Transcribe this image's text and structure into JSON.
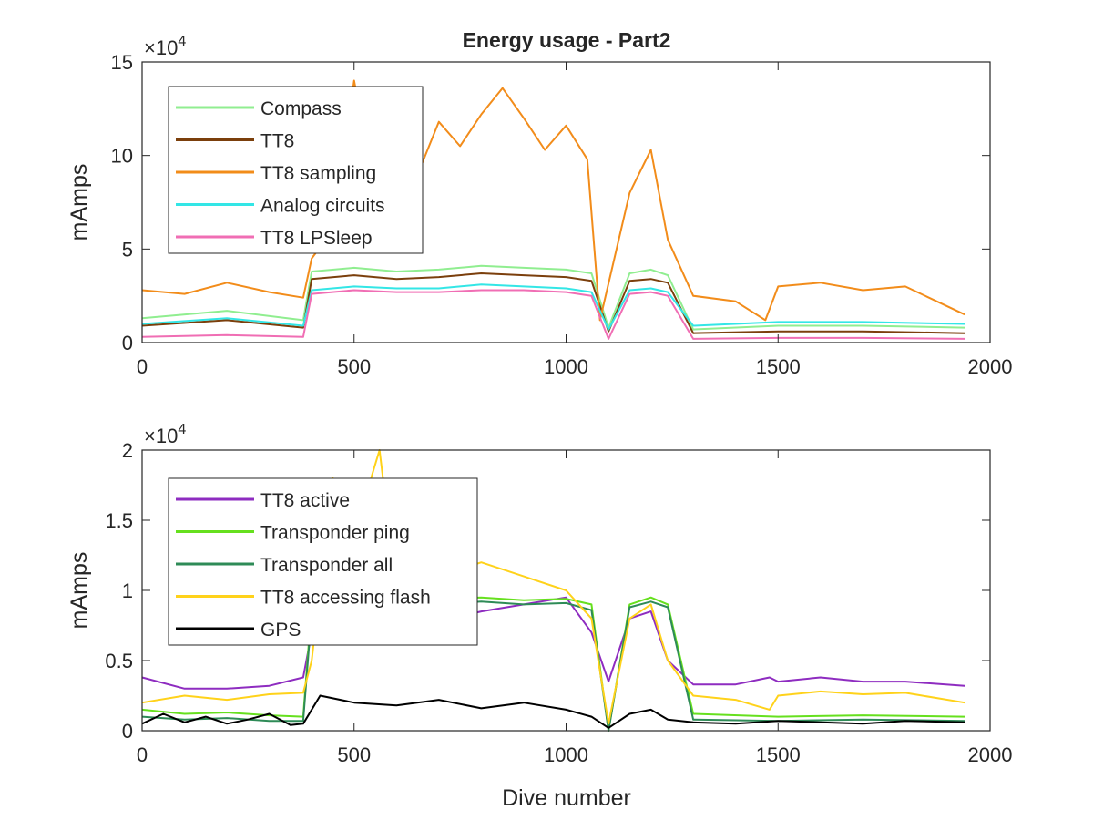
{
  "chart_data": [
    {
      "type": "line",
      "title": "Energy usage - Part2",
      "xlabel": "",
      "ylabel": "mAmps",
      "xlim": [
        0,
        2000
      ],
      "ylim": [
        0,
        150000
      ],
      "y_exponent_label": "×10",
      "y_exponent_power": "4",
      "xticks": [
        "0",
        "500",
        "1000",
        "1500",
        "2000"
      ],
      "yticks": [
        "0",
        "5",
        "10",
        "15"
      ],
      "ytick_values": [
        0,
        50000,
        100000,
        150000
      ],
      "legend_placement": "top-left",
      "grid": false,
      "series": [
        {
          "name": "Compass",
          "color": "#90ee90",
          "x": [
            0,
            200,
            380,
            400,
            500,
            600,
            700,
            800,
            900,
            1000,
            1060,
            1100,
            1150,
            1200,
            1240,
            1300,
            1500,
            1700,
            1940
          ],
          "y": [
            13000,
            17000,
            12000,
            38000,
            40000,
            38000,
            39000,
            41000,
            40000,
            39000,
            37000,
            8000,
            37000,
            39000,
            36000,
            7000,
            9000,
            9000,
            8000
          ]
        },
        {
          "name": "TT8",
          "color": "#7b3f0c",
          "x": [
            0,
            200,
            380,
            400,
            500,
            600,
            700,
            800,
            900,
            1000,
            1060,
            1100,
            1150,
            1200,
            1240,
            1300,
            1500,
            1700,
            1940
          ],
          "y": [
            9000,
            12000,
            8000,
            34000,
            36000,
            34000,
            35000,
            37000,
            36000,
            35000,
            33000,
            6000,
            33000,
            34000,
            32000,
            5000,
            6000,
            6000,
            5000
          ]
        },
        {
          "name": "TT8 sampling",
          "color": "#f28c1a",
          "x": [
            0,
            100,
            200,
            300,
            380,
            400,
            450,
            500,
            550,
            600,
            650,
            700,
            750,
            800,
            850,
            900,
            950,
            1000,
            1050,
            1080,
            1150,
            1200,
            1240,
            1300,
            1400,
            1470,
            1500,
            1600,
            1700,
            1800,
            1940
          ],
          "y": [
            28000,
            26000,
            32000,
            27000,
            24000,
            45000,
            60000,
            140000,
            80000,
            100000,
            90000,
            118000,
            105000,
            122000,
            136000,
            120000,
            103000,
            116000,
            98000,
            12000,
            80000,
            103000,
            55000,
            25000,
            22000,
            12000,
            30000,
            32000,
            28000,
            30000,
            15000
          ]
        },
        {
          "name": "Analog circuits",
          "color": "#33e6e6",
          "x": [
            0,
            200,
            380,
            400,
            500,
            600,
            700,
            800,
            900,
            1000,
            1060,
            1100,
            1150,
            1200,
            1240,
            1300,
            1500,
            1700,
            1940
          ],
          "y": [
            10000,
            13000,
            9000,
            28000,
            30000,
            29000,
            29000,
            31000,
            30000,
            29000,
            27000,
            7000,
            28000,
            29000,
            27000,
            9000,
            11000,
            11000,
            10000
          ]
        },
        {
          "name": "TT8 LPSleep",
          "color": "#f06eb4",
          "x": [
            0,
            200,
            380,
            400,
            500,
            600,
            700,
            800,
            900,
            1000,
            1060,
            1100,
            1150,
            1200,
            1240,
            1300,
            1500,
            1700,
            1940
          ],
          "y": [
            3000,
            4000,
            3000,
            26000,
            28000,
            27000,
            27000,
            28000,
            28000,
            27000,
            25000,
            2000,
            26000,
            27000,
            25000,
            2000,
            2500,
            2500,
            2000
          ]
        }
      ]
    },
    {
      "type": "line",
      "title": "",
      "xlabel": "Dive number",
      "ylabel": "mAmps",
      "xlim": [
        0,
        2000
      ],
      "ylim": [
        0,
        20000
      ],
      "y_exponent_label": "×10",
      "y_exponent_power": "4",
      "xticks": [
        "0",
        "500",
        "1000",
        "1500",
        "2000"
      ],
      "yticks": [
        "0",
        "0.5",
        "1",
        "1.5",
        "2"
      ],
      "ytick_values": [
        0,
        5000,
        10000,
        15000,
        20000
      ],
      "legend_placement": "top-left",
      "grid": false,
      "series": [
        {
          "name": "TT8 active",
          "color": "#8e2cc0",
          "x": [
            0,
            100,
            200,
            300,
            380,
            400,
            500,
            600,
            700,
            800,
            900,
            1000,
            1060,
            1100,
            1150,
            1200,
            1240,
            1300,
            1400,
            1480,
            1500,
            1600,
            1700,
            1800,
            1940
          ],
          "y": [
            3800,
            3000,
            3000,
            3200,
            3800,
            7000,
            8000,
            7500,
            7800,
            8500,
            9000,
            9500,
            7000,
            3500,
            8000,
            8500,
            5000,
            3300,
            3300,
            3800,
            3500,
            3800,
            3500,
            3500,
            3200
          ]
        },
        {
          "name": "Transponder ping",
          "color": "#66e01e",
          "x": [
            0,
            100,
            200,
            300,
            380,
            400,
            500,
            600,
            700,
            800,
            900,
            1000,
            1060,
            1100,
            1150,
            1200,
            1240,
            1300,
            1500,
            1700,
            1940
          ],
          "y": [
            1500,
            1200,
            1300,
            1100,
            1000,
            9000,
            9500,
            9200,
            9400,
            9500,
            9300,
            9400,
            9000,
            0,
            9000,
            9500,
            9000,
            1200,
            1000,
            1100,
            1000
          ]
        },
        {
          "name": "Transponder all",
          "color": "#2e8b57",
          "x": [
            0,
            100,
            200,
            300,
            380,
            400,
            500,
            600,
            700,
            800,
            900,
            1000,
            1060,
            1100,
            1150,
            1200,
            1240,
            1300,
            1500,
            1700,
            1940
          ],
          "y": [
            1000,
            800,
            900,
            700,
            700,
            8500,
            9000,
            8800,
            9000,
            9200,
            9000,
            9100,
            8600,
            0,
            8800,
            9200,
            8800,
            800,
            700,
            800,
            700
          ]
        },
        {
          "name": "TT8 accessing flash",
          "color": "#ffd21a",
          "x": [
            0,
            100,
            200,
            300,
            380,
            400,
            450,
            500,
            560,
            600,
            700,
            800,
            900,
            1000,
            1060,
            1100,
            1150,
            1200,
            1240,
            1300,
            1400,
            1480,
            1500,
            1600,
            1700,
            1800,
            1940
          ],
          "y": [
            2000,
            2500,
            2200,
            2600,
            2700,
            5000,
            18000,
            14000,
            20000,
            10000,
            11000,
            12000,
            11000,
            10000,
            8000,
            500,
            8000,
            9000,
            5000,
            2500,
            2200,
            1500,
            2500,
            2800,
            2600,
            2700,
            2000
          ]
        },
        {
          "name": "GPS",
          "color": "#000000",
          "x": [
            0,
            50,
            100,
            150,
            200,
            250,
            300,
            350,
            380,
            420,
            500,
            600,
            700,
            800,
            900,
            1000,
            1060,
            1100,
            1150,
            1200,
            1240,
            1300,
            1400,
            1500,
            1600,
            1700,
            1800,
            1940
          ],
          "y": [
            500,
            1200,
            600,
            1000,
            500,
            800,
            1200,
            400,
            500,
            2500,
            2000,
            1800,
            2200,
            1600,
            2000,
            1500,
            1000,
            200,
            1200,
            1500,
            800,
            600,
            500,
            700,
            600,
            500,
            700,
            600
          ]
        }
      ]
    }
  ]
}
